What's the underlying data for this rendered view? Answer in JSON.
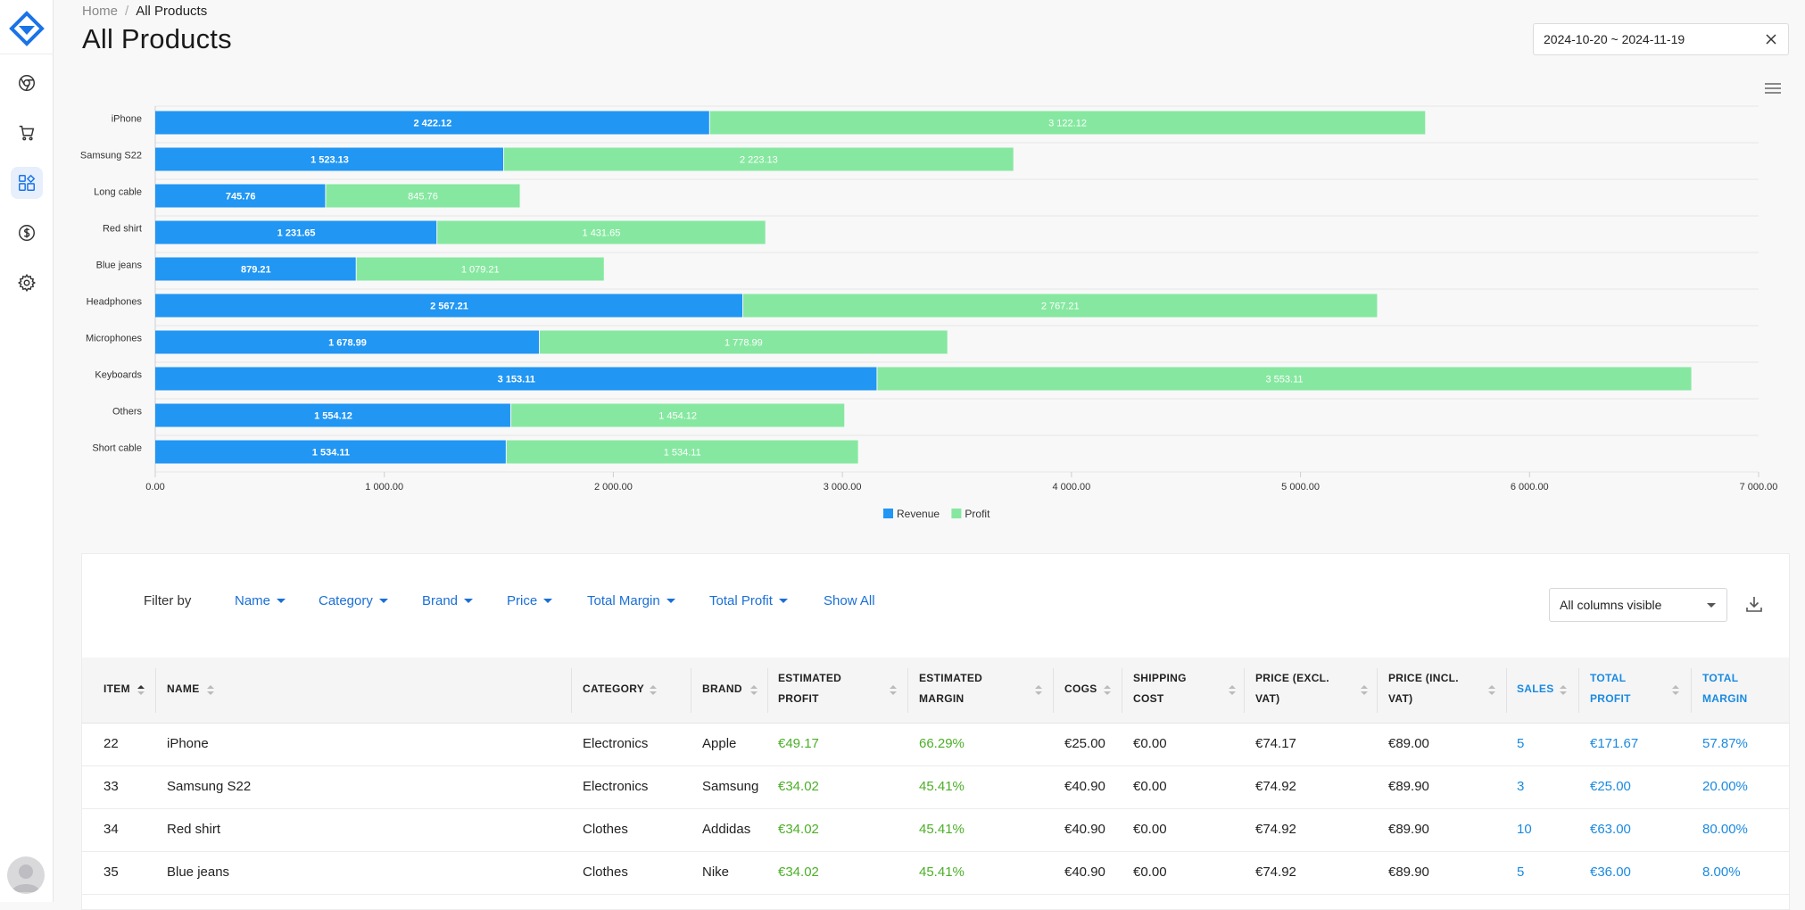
{
  "breadcrumb": {
    "home": "Home",
    "separator": "/",
    "current": "All Products"
  },
  "page_title": "All Products",
  "date_range": "2024-10-20 ~ 2024-11-19",
  "sidebar": {
    "items": [
      {
        "icon": "chrome-icon"
      },
      {
        "icon": "cart-icon"
      },
      {
        "icon": "dashboard-icon",
        "active": true
      },
      {
        "icon": "dollar-icon"
      },
      {
        "icon": "gear-icon"
      }
    ]
  },
  "chart_data": {
    "type": "bar",
    "orientation": "horizontal",
    "stacked": true,
    "categories": [
      "iPhone",
      "Samsung S22",
      "Long cable",
      "Red shirt",
      "Blue jeans",
      "Headphones",
      "Microphones",
      "Keyboards",
      "Others",
      "Short cable"
    ],
    "series": [
      {
        "name": "Revenue",
        "color": "#2196f3",
        "values": [
          2422.12,
          1523.13,
          745.76,
          1231.65,
          879.21,
          2567.21,
          1678.99,
          3153.11,
          1554.12,
          1534.11
        ],
        "labels": [
          "2 422.12",
          "1 523.13",
          "745.76",
          "1 231.65",
          "879.21",
          "2 567.21",
          "1 678.99",
          "3 153.11",
          "1 554.12",
          "1 534.11"
        ]
      },
      {
        "name": "Profit",
        "color": "#86e8a0",
        "values": [
          3122.12,
          2223.13,
          845.76,
          1431.65,
          1079.21,
          2767.21,
          1778.99,
          3553.11,
          1454.12,
          1534.11
        ],
        "labels": [
          "3 122.12",
          "2 223.13",
          "845.76",
          "1 431.65",
          "1 079.21",
          "2 767.21",
          "1 778.99",
          "3 553.11",
          "1 454.12",
          "1 534.11"
        ]
      }
    ],
    "xlim": [
      0,
      7000
    ],
    "x_ticks": [
      0,
      1000,
      2000,
      3000,
      4000,
      5000,
      6000,
      7000
    ],
    "x_tick_labels": [
      "0.00",
      "1 000.00",
      "2 000.00",
      "3 000.00",
      "4 000.00",
      "5 000.00",
      "6 000.00",
      "7 000.00"
    ],
    "legend_position": "bottom-center",
    "grid": "horizontal"
  },
  "filters": {
    "label": "Filter by",
    "items": [
      "Name",
      "Category",
      "Brand",
      "Price",
      "Total Margin",
      "Total Profit"
    ],
    "show_all": "Show All"
  },
  "columns_select": "All columns visible",
  "table": {
    "headers": [
      {
        "l1": "ITEM",
        "l2": ""
      },
      {
        "l1": "NAME",
        "l2": ""
      },
      {
        "l1": "CATEGORY",
        "l2": ""
      },
      {
        "l1": "BRAND",
        "l2": ""
      },
      {
        "l1": "ESTIMATED",
        "l2": "PROFIT"
      },
      {
        "l1": "ESTIMATED",
        "l2": "MARGIN"
      },
      {
        "l1": "COGS",
        "l2": ""
      },
      {
        "l1": "SHIPPING",
        "l2": "COST"
      },
      {
        "l1": "PRICE (EXCL.",
        "l2": "VAT)"
      },
      {
        "l1": "PRICE (INCL.",
        "l2": "VAT)"
      },
      {
        "l1": "SALES",
        "l2": ""
      },
      {
        "l1": "TOTAL",
        "l2": "PROFIT"
      },
      {
        "l1": "TOTAL",
        "l2": "MARGIN"
      }
    ],
    "rows": [
      [
        "22",
        "iPhone",
        "Electronics",
        "Apple",
        "€49.17",
        "66.29%",
        "€25.00",
        "€0.00",
        "€74.17",
        "€89.00",
        "5",
        "€171.67",
        "57.87%"
      ],
      [
        "33",
        "Samsung S22",
        "Electronics",
        "Samsung",
        "€34.02",
        "45.41%",
        "€40.90",
        "€0.00",
        "€74.92",
        "€89.90",
        "3",
        "€25.00",
        "20.00%"
      ],
      [
        "34",
        "Red shirt",
        "Clothes",
        "Addidas",
        "€34.02",
        "45.41%",
        "€40.90",
        "€0.00",
        "€74.92",
        "€89.90",
        "10",
        "€63.00",
        "80.00%"
      ],
      [
        "35",
        "Blue jeans",
        "Clothes",
        "Nike",
        "€34.02",
        "45.41%",
        "€40.90",
        "€0.00",
        "€74.92",
        "€89.90",
        "5",
        "€36.00",
        "8.00%"
      ]
    ]
  }
}
